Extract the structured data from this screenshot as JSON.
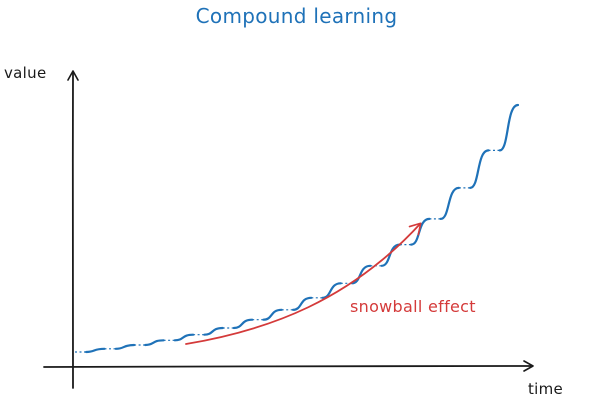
{
  "title": "Compound learning",
  "axes": {
    "x_label": "time",
    "y_label": "value"
  },
  "annotation": "snowball effect",
  "colors": {
    "curve": "#1f72b8",
    "arrow": "#d43a3a",
    "axis": "#1a1a1a",
    "title": "#1f72b8"
  },
  "curve": {
    "steps": 15,
    "growth": "exponential"
  }
}
